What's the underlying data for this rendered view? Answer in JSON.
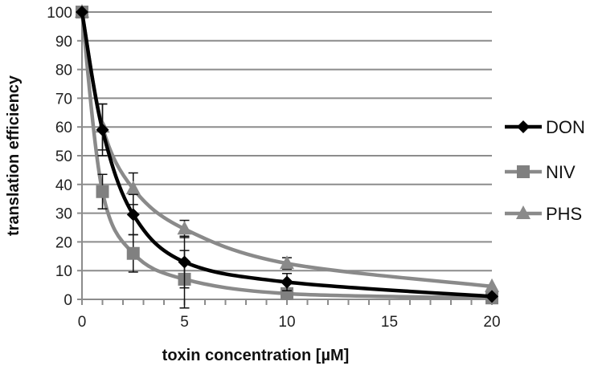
{
  "chart_data": {
    "type": "line",
    "title": "",
    "xlabel": "toxin concentration [µM]",
    "ylabel": "translation efficiency",
    "xlim": [
      0,
      20
    ],
    "ylim": [
      0,
      100
    ],
    "xticks": [
      0,
      5,
      10,
      15,
      20
    ],
    "yticks": [
      0,
      10,
      20,
      30,
      40,
      50,
      60,
      70,
      80,
      90,
      100
    ],
    "grid": {
      "horizontal": true,
      "vertical": false
    },
    "legend_position": "right",
    "x": [
      0,
      1,
      2.5,
      5,
      10,
      20
    ],
    "series": [
      {
        "name": "DON",
        "marker": "diamond",
        "color": "#000000",
        "values": [
          100,
          59,
          29.5,
          13,
          6,
          1
        ],
        "errors": [
          0,
          9,
          7,
          9,
          3,
          0
        ]
      },
      {
        "name": "NIV",
        "marker": "square",
        "color": "#808080",
        "values": [
          100,
          37.5,
          16,
          7,
          2,
          0.5
        ],
        "errors": [
          0,
          6,
          6.5,
          10,
          1,
          0
        ]
      },
      {
        "name": "PHS",
        "marker": "triangle",
        "color": "#888888",
        "values": [
          100,
          60,
          38.5,
          24.5,
          12.5,
          4.5
        ],
        "errors": [
          0,
          8,
          5.5,
          3,
          2,
          0
        ]
      }
    ]
  }
}
